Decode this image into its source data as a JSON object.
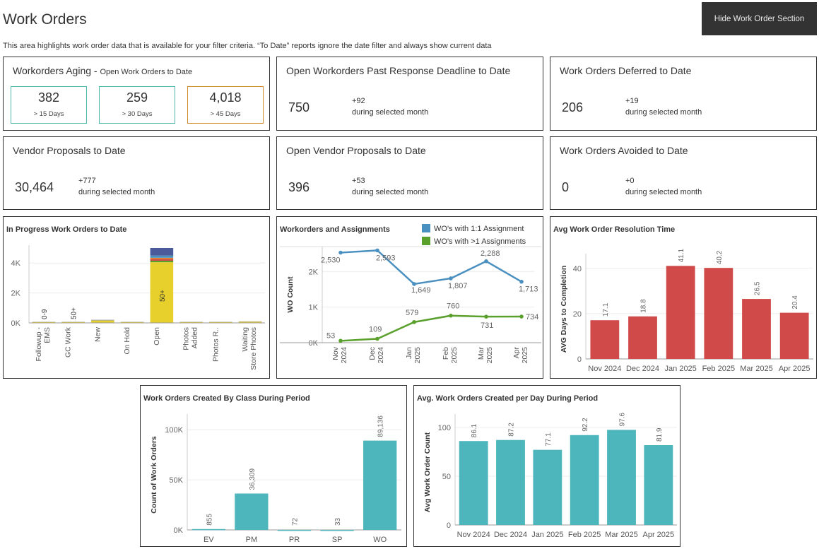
{
  "header": {
    "title": "Work Orders",
    "hide_button": "Hide Work Order Section",
    "description": "This area highlights work order data that is available for your filter criteria.  “To Date” reports ignore the date filter and always show current data"
  },
  "aging": {
    "title": "Workorders Aging",
    "title_sep": " - ",
    "subtitle": "Open Work Orders to Date",
    "boxes": [
      {
        "value": "382",
        "label": "> 15 Days"
      },
      {
        "value": "259",
        "label": "> 30 Days"
      },
      {
        "value": "4,018",
        "label": "> 45 Days"
      }
    ]
  },
  "kpis": {
    "past_deadline": {
      "title": "Open Workorders Past Response Deadline to Date",
      "value": "750",
      "delta": "+92",
      "delta_label": "during selected month"
    },
    "deferred": {
      "title": "Work Orders Deferred to Date",
      "value": "206",
      "delta": "+19",
      "delta_label": "during selected month"
    },
    "vendor_proposals": {
      "title": "Vendor Proposals to Date",
      "value": "30,464",
      "delta": "+777",
      "delta_label": "during selected month"
    },
    "open_vendor_proposals": {
      "title": "Open Vendor Proposals to Date",
      "value": "396",
      "delta": "+53",
      "delta_label": "during selected month"
    },
    "avoided": {
      "title": "Work Orders Avoided to Date",
      "value": "0",
      "delta": "+0",
      "delta_label": "during selected month"
    }
  },
  "colors": {
    "teal": "#4db6bc",
    "red": "#d04a4a",
    "blue": "#4a90c0",
    "green": "#5aa02c",
    "yellow": "#e8d02c",
    "border": "#333333"
  },
  "chart_data": [
    {
      "id": "in_progress",
      "type": "bar",
      "title": "In Progress Work Orders to Date",
      "categories": [
        "Followup - EMS",
        "GC Work",
        "New",
        "On Hold",
        "Open",
        "Photos Added",
        "Photos R..",
        "Waiting Store Photos"
      ],
      "category_lines": [
        [
          "Followup -",
          "EMS"
        ],
        [
          "GC Work"
        ],
        [
          "New"
        ],
        [
          "On Hold"
        ],
        [
          "Open"
        ],
        [
          "Photos",
          "Added"
        ],
        [
          "Photos R.."
        ],
        [
          "Waiting",
          "Store Photos"
        ]
      ],
      "values": [
        7,
        50,
        200,
        60,
        5000,
        0,
        60,
        100
      ],
      "labels": [
        "0-9",
        "50+",
        "",
        "",
        "50+",
        "",
        "",
        ""
      ],
      "yticks": [
        "0K",
        "2K",
        "4K"
      ],
      "ylim": [
        0,
        5000
      ],
      "stack_colors": [
        "#e8d02c",
        "#5aa02c",
        "#d04a4a",
        "#e07a2c",
        "#4a90c0",
        "#4a5a9a"
      ]
    },
    {
      "id": "assignments",
      "type": "line",
      "title": "Workorders and Assignments",
      "ylabel": "WO Count",
      "x_lines": [
        [
          "Nov",
          "2024"
        ],
        [
          "Dec",
          "2024"
        ],
        [
          "Jan",
          "2025"
        ],
        [
          "Feb",
          "2025"
        ],
        [
          "Mar",
          "2025"
        ],
        [
          "Apr",
          "2025"
        ]
      ],
      "yticks": [
        "0K",
        "1K",
        "2K"
      ],
      "ylim": [
        0,
        2700
      ],
      "series": [
        {
          "name": "WO's with 1:1 Assignment",
          "color": "#4a90c0",
          "values": [
            2530,
            2593,
            1649,
            1807,
            2288,
            1713
          ],
          "labels": [
            "2,530",
            "2,593",
            "1,649",
            "1,807",
            "2,288",
            "1,713"
          ]
        },
        {
          "name": "WO's with >1 Assignments",
          "color": "#5aa02c",
          "values": [
            53,
            109,
            579,
            760,
            731,
            734
          ],
          "labels": [
            "53",
            "109",
            "579",
            "760",
            "731",
            "734"
          ]
        }
      ]
    },
    {
      "id": "resolution",
      "type": "bar",
      "title": "Avg Work Order Resolution Time",
      "ylabel": "AVG Days to Completion",
      "categories": [
        "Nov 2024",
        "Dec 2024",
        "Jan 2025",
        "Feb 2025",
        "Mar 2025",
        "Apr 2025"
      ],
      "values": [
        17.1,
        18.8,
        41.1,
        40.2,
        26.5,
        20.4
      ],
      "labels": [
        "17.1",
        "18.8",
        "41.1",
        "40.2",
        "26.5",
        "20.4"
      ],
      "yticks": [
        "0",
        "20",
        "40"
      ],
      "ylim": [
        0,
        44
      ]
    },
    {
      "id": "by_class",
      "type": "bar",
      "title": "Work Orders Created By Class During Period",
      "ylabel": "Count of Work Orders",
      "categories": [
        "EV",
        "PM",
        "PR",
        "SP",
        "WO"
      ],
      "values": [
        855,
        36309,
        72,
        33,
        89136
      ],
      "labels": [
        "855",
        "36,309",
        "72",
        "33",
        "89,136"
      ],
      "yticks": [
        "0K",
        "50K",
        "100K"
      ],
      "ylim": [
        0,
        110000
      ]
    },
    {
      "id": "per_day",
      "type": "bar",
      "title": "Avg. Work Orders Created per Day During Period",
      "ylabel": "Avg Work Order Count",
      "categories": [
        "Nov 2024",
        "Dec 2024",
        "Jan 2025",
        "Feb 2025",
        "Mar 2025",
        "Apr 2025"
      ],
      "values": [
        86.1,
        87.2,
        77.1,
        92.2,
        97.6,
        81.9
      ],
      "labels": [
        "86.1",
        "87.2",
        "77.1",
        "92.2",
        "97.6",
        "81.9"
      ],
      "yticks": [
        "0",
        "50",
        "100"
      ],
      "ylim": [
        0,
        108
      ]
    }
  ]
}
